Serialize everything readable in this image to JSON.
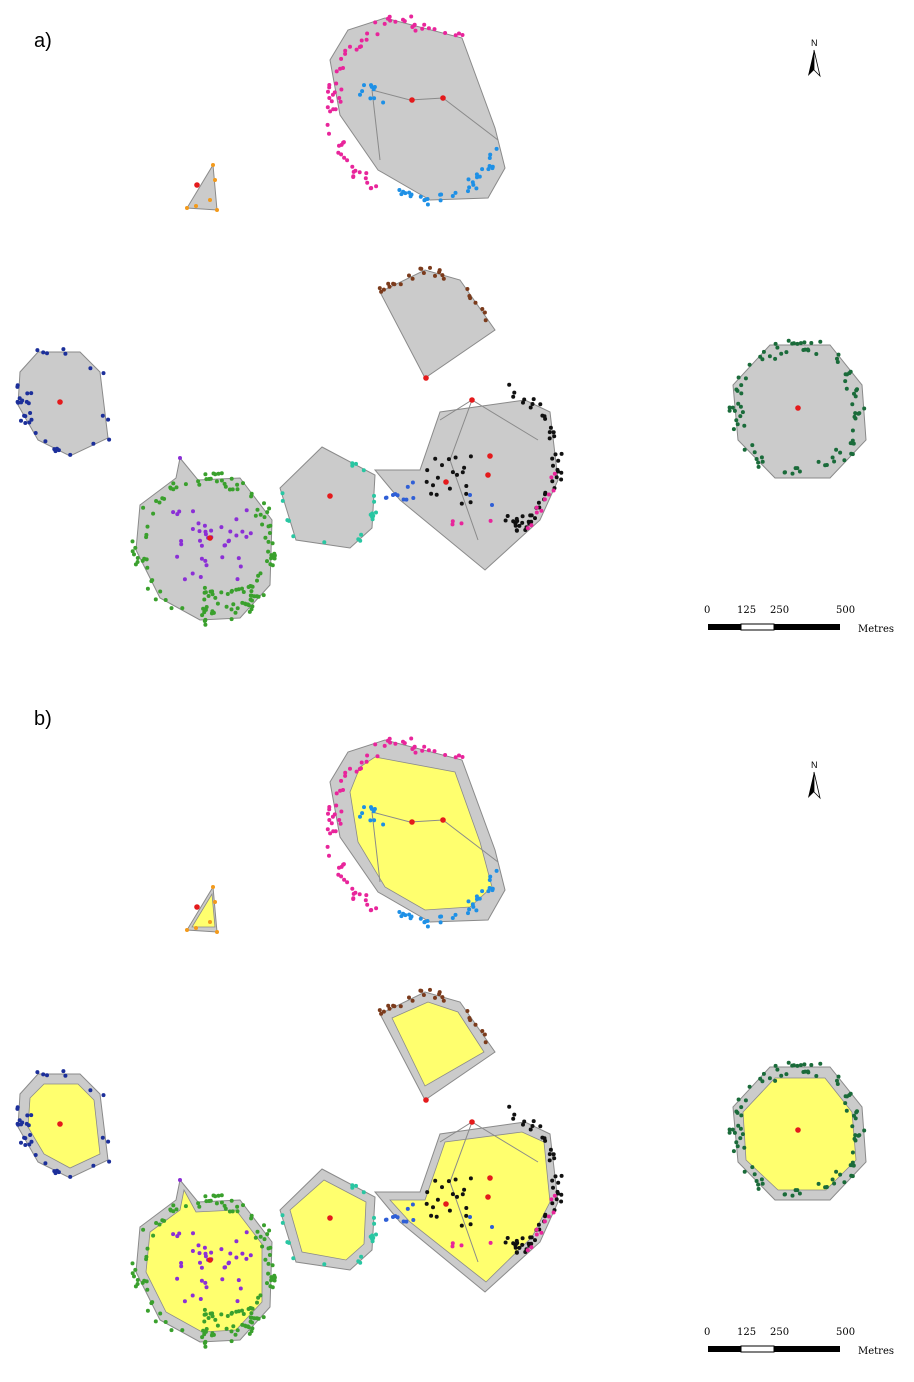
{
  "panels": [
    {
      "id": "a",
      "label": "a)",
      "show_buffer": false
    },
    {
      "id": "b",
      "label": "b)",
      "show_buffer": true
    }
  ],
  "north_arrow": {
    "label": "N"
  },
  "scale_bar": {
    "ticks": [
      "0",
      "125",
      "250",
      "500"
    ],
    "unit": "Metres"
  },
  "colors": {
    "hull_fill": "#cbcbcb",
    "hull_stroke": "#8a8a8a",
    "inner_fill": "#ffff6e",
    "centroid": "#e41a1c",
    "magenta": "#e8259b",
    "lightblue": "#1e90e6",
    "orange": "#f39a1b",
    "brown": "#7b3b1c",
    "navy": "#1c2f9a",
    "darkgreen": "#1a6b3a",
    "green": "#3aa02d",
    "purple": "#8b2fd6",
    "cyan": "#29c6a2",
    "black": "#111111",
    "blue": "#2f5fd6"
  }
}
